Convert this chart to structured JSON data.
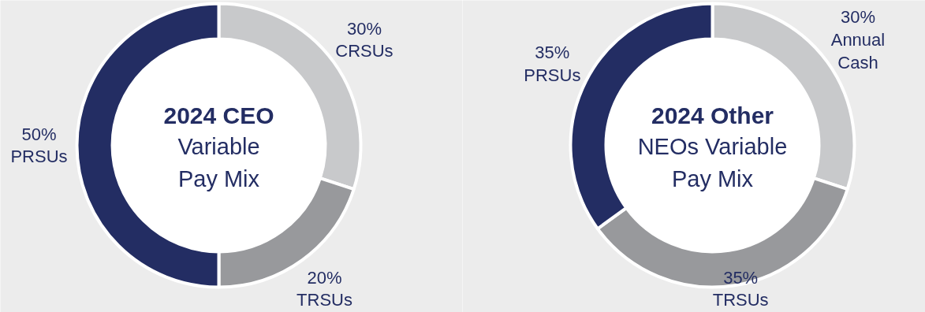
{
  "chart_data": [
    {
      "type": "donut",
      "title": "2024 CEO",
      "subtitle": "Variable Pay Mix",
      "categories": [
        "CRSUs",
        "TRSUs",
        "PRSUs"
      ],
      "values": [
        30,
        20,
        50
      ],
      "value_labels": [
        "30%",
        "20%",
        "50%"
      ],
      "colors": [
        "#c8c9cb",
        "#98999c",
        "#232d63"
      ]
    },
    {
      "type": "donut",
      "title": "2024 Other",
      "subtitle": "NEOs Variable Pay Mix",
      "categories": [
        "Annual Cash",
        "TRSUs",
        "PRSUs"
      ],
      "values": [
        30,
        35,
        35
      ],
      "value_labels": [
        "30%",
        "35%",
        "35%"
      ],
      "colors": [
        "#c8c9cb",
        "#98999c",
        "#232d63"
      ]
    }
  ]
}
